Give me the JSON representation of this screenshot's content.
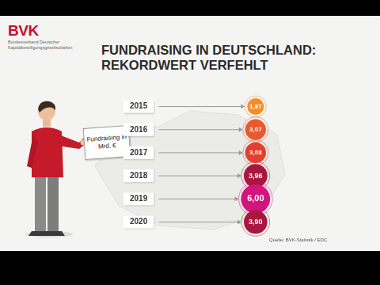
{
  "header": {
    "logo": "BVK",
    "organisation": "Bundesverband Deutscher Kapitalbeteiligungsgesellschaften"
  },
  "chart_data": {
    "type": "bubble",
    "title": [
      "FUNDRAISING IN DEUTSCHLAND:",
      "REKORDWERT VERFEHLT"
    ],
    "annotations": [
      "Fundraising in Mrd. €"
    ],
    "source": "Quelle: BVK-Statistik / EDC",
    "categories": [
      "2015",
      "2016",
      "2017",
      "2018",
      "2019",
      "2020"
    ],
    "values": [
      1.97,
      3.07,
      3.08,
      3.96,
      6.0,
      3.9
    ],
    "value_labels": [
      "1,97",
      "3,07",
      "3,08",
      "3,96",
      "6,00",
      "3,90"
    ],
    "colors": [
      "#f0902c",
      "#e9582e",
      "#e1402f",
      "#a8173f",
      "#d3157b",
      "#a8173f"
    ],
    "data_labels": true,
    "tick_labels": "y",
    "grid": false
  }
}
